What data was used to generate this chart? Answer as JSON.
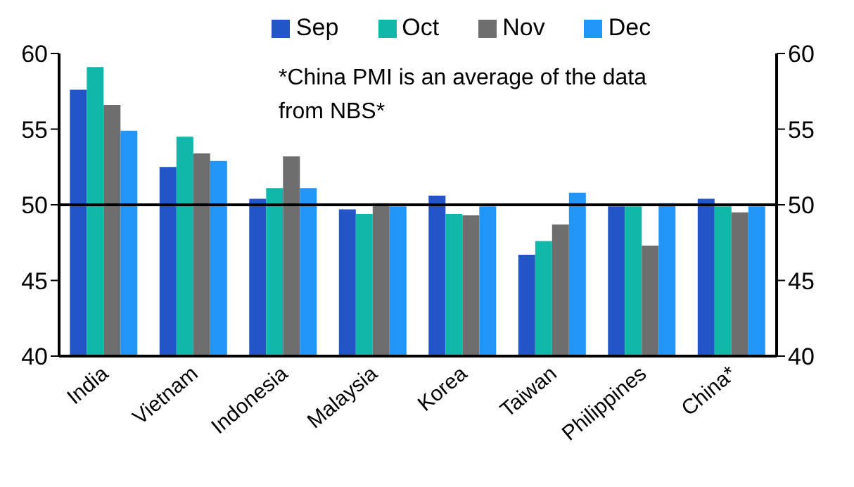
{
  "chart_data": {
    "type": "bar",
    "categories": [
      "India",
      "Vietnam",
      "Indonesia",
      "Malaysia",
      "Korea",
      "Taiwan",
      "Philippines",
      "China*"
    ],
    "series": [
      {
        "name": "Sep",
        "color": "#2155c8",
        "values": [
          57.6,
          52.5,
          50.4,
          49.7,
          50.6,
          46.7,
          49.9,
          50.4
        ]
      },
      {
        "name": "Oct",
        "color": "#0fb8a9",
        "values": [
          59.1,
          54.5,
          51.1,
          49.4,
          49.4,
          47.6,
          49.9,
          49.9
        ]
      },
      {
        "name": "Nov",
        "color": "#6e6e6e",
        "values": [
          56.6,
          53.4,
          53.2,
          50.1,
          49.3,
          48.7,
          47.3,
          49.5
        ]
      },
      {
        "name": "Dec",
        "color": "#2196f8",
        "values": [
          54.9,
          52.9,
          51.1,
          49.9,
          49.9,
          50.8,
          50.1,
          49.9
        ]
      }
    ],
    "ylim": [
      40,
      60
    ],
    "yticks": [
      40,
      45,
      50,
      55,
      60
    ],
    "y2lim": [
      40,
      60
    ],
    "y2ticks": [
      40,
      45,
      50,
      55,
      60
    ],
    "ref_lines": [
      {
        "axis": "y",
        "value": 50,
        "color": "#000000"
      }
    ],
    "annotations": [
      "*China PMI is an average of the data from NBS*"
    ],
    "legend": "top",
    "grid": false
  }
}
